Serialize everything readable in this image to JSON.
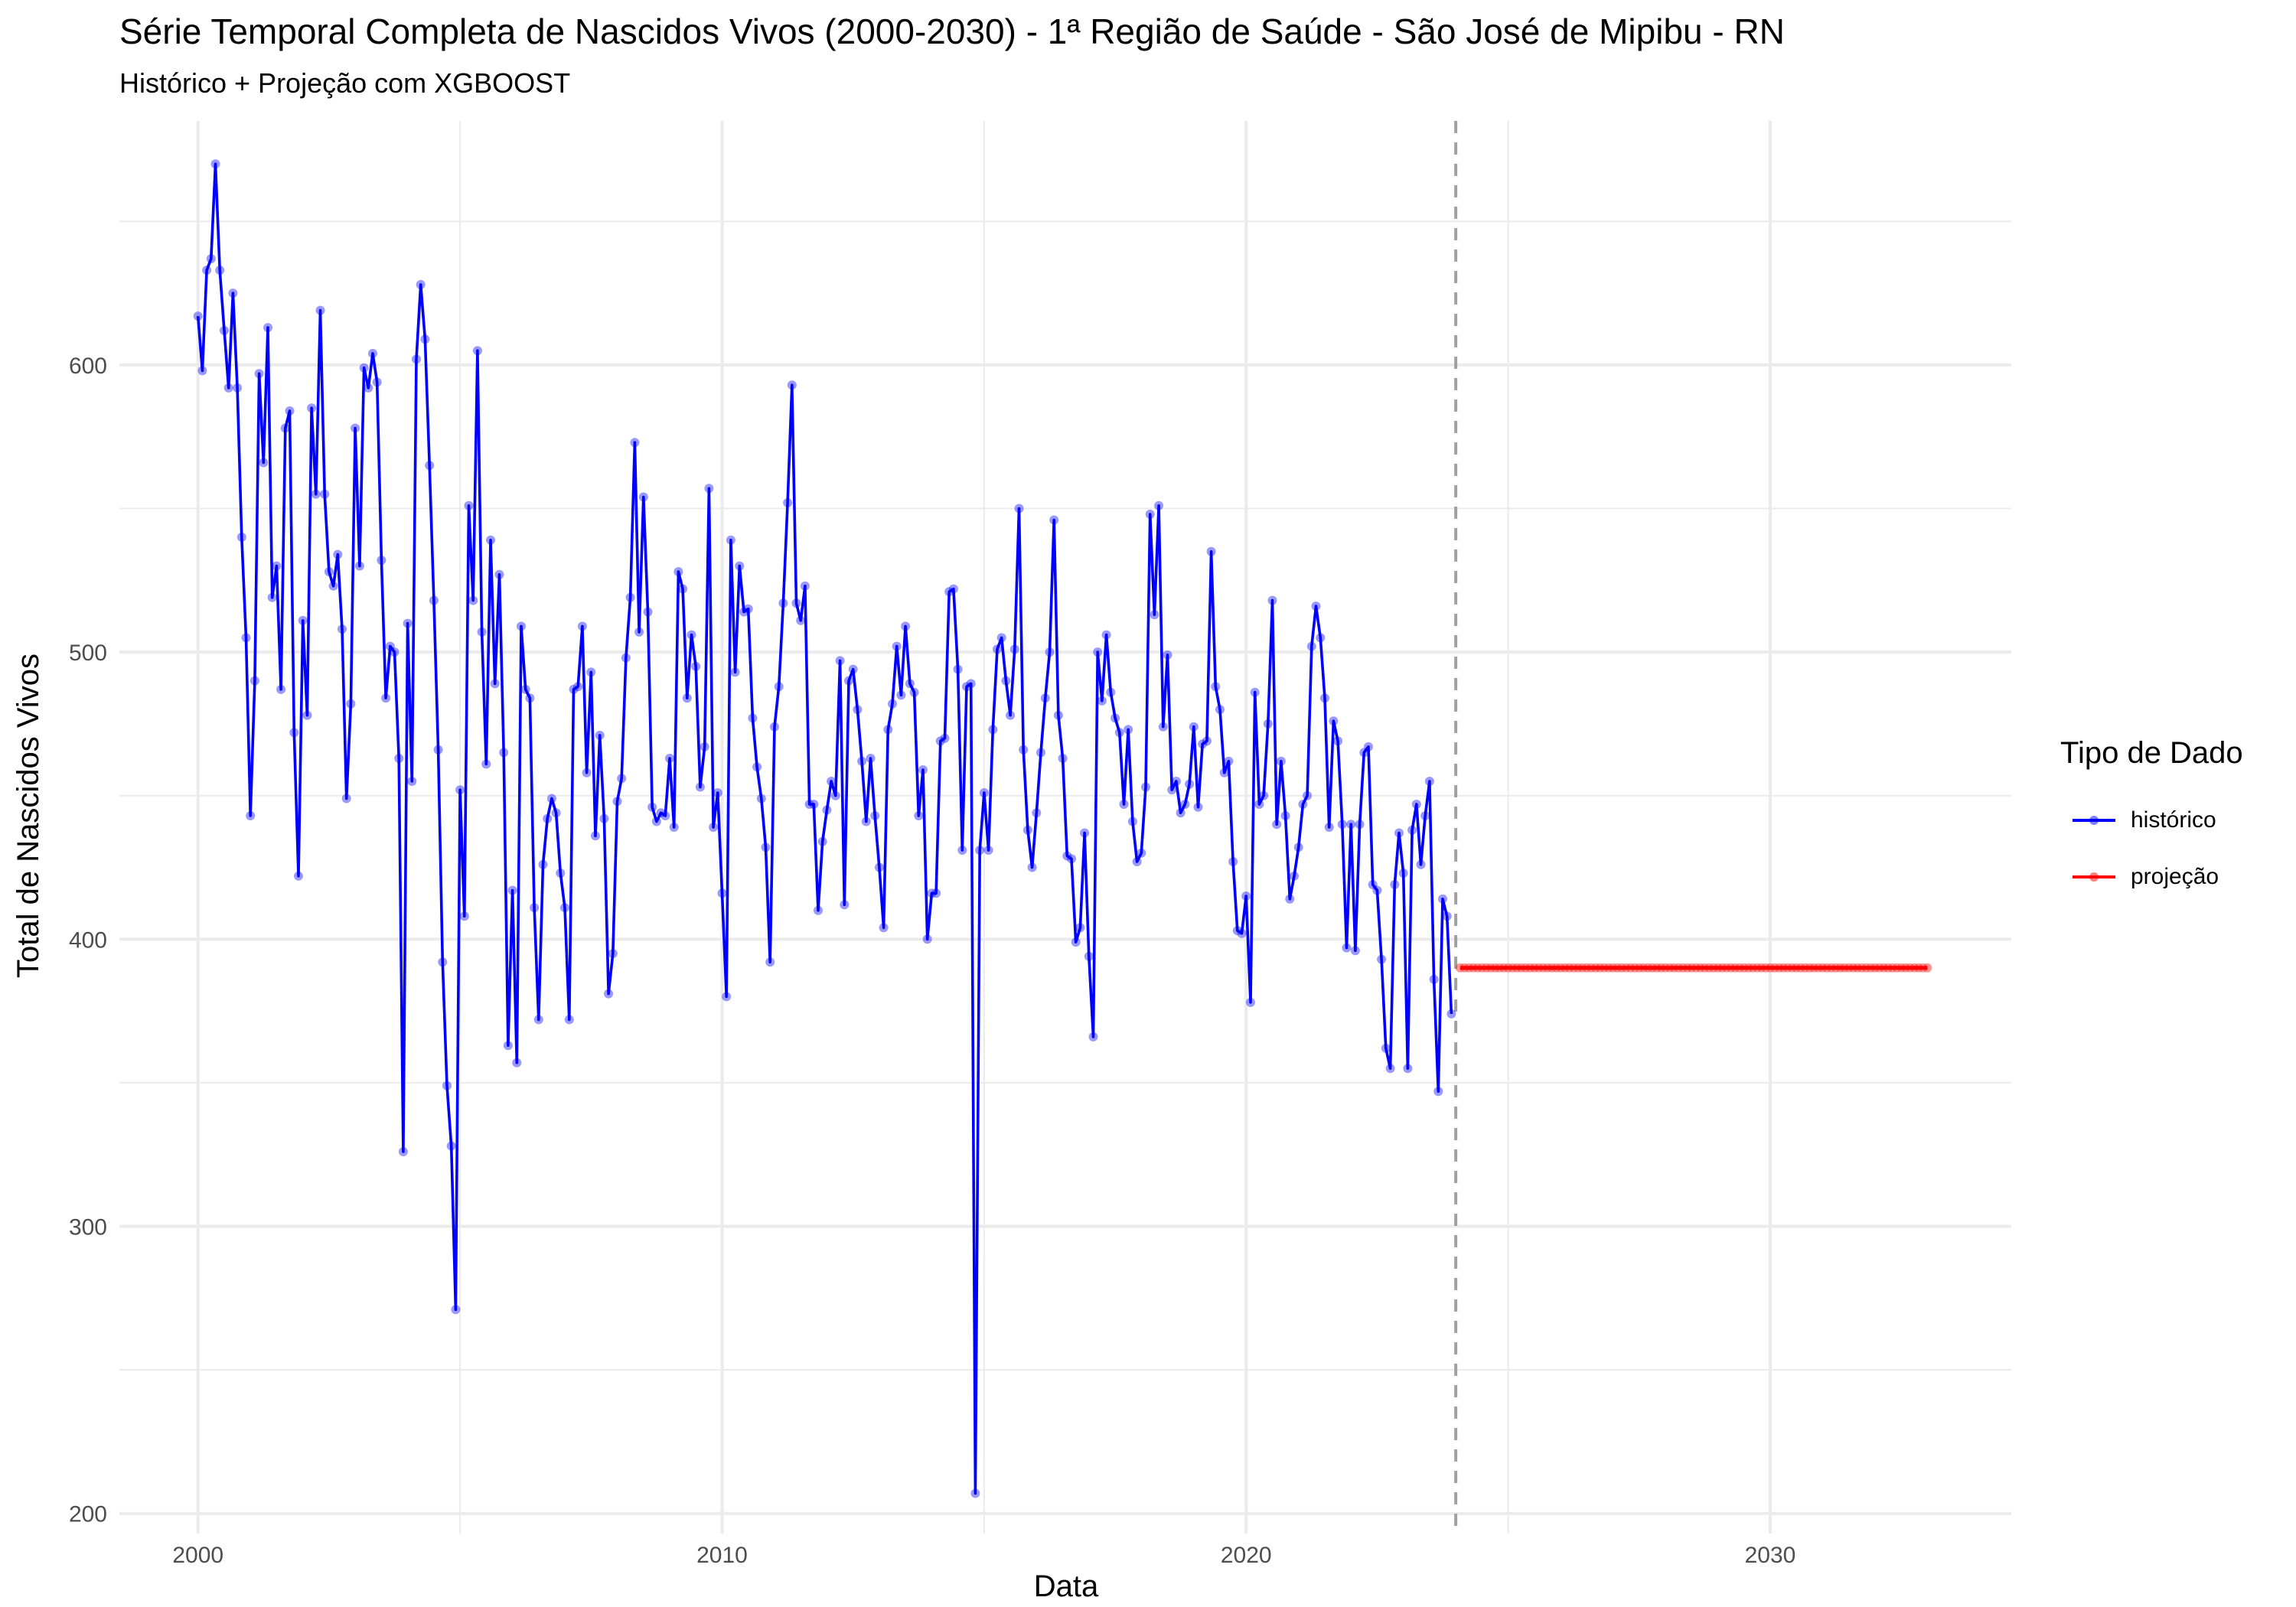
{
  "title": "Série Temporal Completa de Nascidos Vivos (2000-2030) -  1ª Região de Saúde - São José de Mipibu - RN",
  "subtitle": "Histórico + Projeção com XGBOOST",
  "chart_data": {
    "type": "line",
    "title": "Série Temporal Completa de Nascidos Vivos (2000-2030) -  1ª Região de Saúde - São José de Mipibu - RN",
    "subtitle": "Histórico + Projeção com XGBOOST",
    "xlabel": "Data",
    "ylabel": "Total de Nascidos Vivos",
    "xlim": [
      1998.5,
      2034.6
    ],
    "ylim": [
      193,
      685
    ],
    "x_ticks": [
      2000,
      2010,
      2020,
      2030
    ],
    "y_ticks": [
      200,
      300,
      400,
      500,
      600
    ],
    "x_tick_labels": [
      "2000",
      "2010",
      "2020",
      "2030"
    ],
    "y_tick_labels": [
      "200",
      "300",
      "400",
      "500",
      "600"
    ],
    "grid": true,
    "legend": {
      "title": "Tipo de Dado",
      "position": "right"
    },
    "vline_x": 2024.0,
    "series": [
      {
        "name": "histórico",
        "color": "#0000FF",
        "start": 2000.0,
        "step_months": 1,
        "values": [
          617,
          598,
          633,
          637,
          670,
          633,
          612,
          592,
          625,
          592,
          540,
          505,
          443,
          490,
          597,
          566,
          613,
          519,
          530,
          487,
          578,
          584,
          472,
          422,
          511,
          478,
          585,
          555,
          619,
          555,
          528,
          523,
          534,
          508,
          449,
          482,
          578,
          530,
          599,
          592,
          604,
          594,
          532,
          484,
          502,
          500,
          463,
          326,
          510,
          455,
          602,
          628,
          609,
          565,
          518,
          466,
          392,
          349,
          328,
          271,
          452,
          408,
          551,
          518,
          605,
          507,
          461,
          539,
          489,
          527,
          465,
          363,
          417,
          357,
          509,
          487,
          484,
          411,
          372,
          426,
          442,
          449,
          444,
          423,
          411,
          372,
          487,
          488,
          509,
          458,
          493,
          436,
          471,
          442,
          381,
          395,
          448,
          456,
          498,
          519,
          573,
          507,
          554,
          514,
          446,
          441,
          444,
          443,
          463,
          439,
          528,
          522,
          484,
          506,
          495,
          453,
          467,
          557,
          439,
          451,
          416,
          380,
          539,
          493,
          530,
          514,
          515,
          477,
          460,
          449,
          432,
          392,
          474,
          488,
          517,
          552,
          593,
          517,
          511,
          523,
          447,
          447,
          410,
          434,
          445,
          455,
          450,
          497,
          412,
          490,
          494,
          480,
          462,
          441,
          463,
          443,
          425,
          404,
          473,
          482,
          502,
          485,
          509,
          489,
          486,
          443,
          459,
          400,
          416,
          416,
          469,
          470,
          521,
          522,
          494,
          431,
          488,
          489,
          207,
          431,
          451,
          431,
          473,
          501,
          505,
          490,
          478,
          501,
          550,
          466,
          438,
          425,
          444,
          465,
          484,
          500,
          546,
          478,
          463,
          429,
          428,
          399,
          404,
          437,
          394,
          366,
          500,
          483,
          506,
          486,
          477,
          472,
          447,
          473,
          441,
          427,
          430,
          453,
          548,
          513,
          551,
          474,
          499,
          452,
          455,
          444,
          447,
          454,
          474,
          446,
          468,
          469,
          535,
          488,
          480,
          458,
          462,
          427,
          403,
          402,
          415,
          378,
          486,
          447,
          450,
          475,
          518,
          440,
          462,
          443,
          414,
          422,
          432,
          447,
          450,
          502,
          516,
          505,
          484,
          439,
          476,
          469,
          440,
          397,
          440,
          396,
          440,
          465,
          467,
          419,
          417,
          393,
          362,
          355,
          419,
          437,
          423,
          355,
          438,
          447,
          426,
          443,
          455,
          386,
          347,
          414,
          408,
          374
        ]
      },
      {
        "name": "projeção",
        "color": "#FF0000",
        "start": 2024.083,
        "step_months": 1,
        "count": 108,
        "constant_value": 390
      }
    ]
  }
}
